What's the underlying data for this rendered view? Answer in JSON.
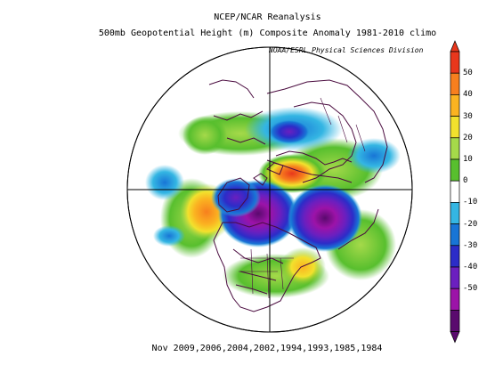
{
  "figure": {
    "title_line1": "NCEP/NCAR Reanalysis",
    "title_line2": "500mb Geopotential Height (m) Composite Anomaly 1981-2010 climo",
    "credit": "NOAA/ESRL Physical Sciences Division",
    "caption": "Nov 2009,2006,2004,2002,1994,1993,1985,1984"
  },
  "colorbar": {
    "labels": [
      "50",
      "40",
      "30",
      "20",
      "10",
      "0",
      "-10",
      "-20",
      "-30",
      "-40",
      "-50"
    ],
    "colors": [
      "#e8371c",
      "#f77f1e",
      "#fbb321",
      "#f2e12d",
      "#a5d94a",
      "#58bf2e",
      "#ffffff",
      "#34b6e3",
      "#1875d6",
      "#2c2cc8",
      "#6b1fbf",
      "#9c13a8",
      "#5a0a6e"
    ]
  },
  "map": {
    "projection": "north-polar-stereographic",
    "ocean": "#ffffff",
    "coastline_color": "#4a0b3f"
  }
}
